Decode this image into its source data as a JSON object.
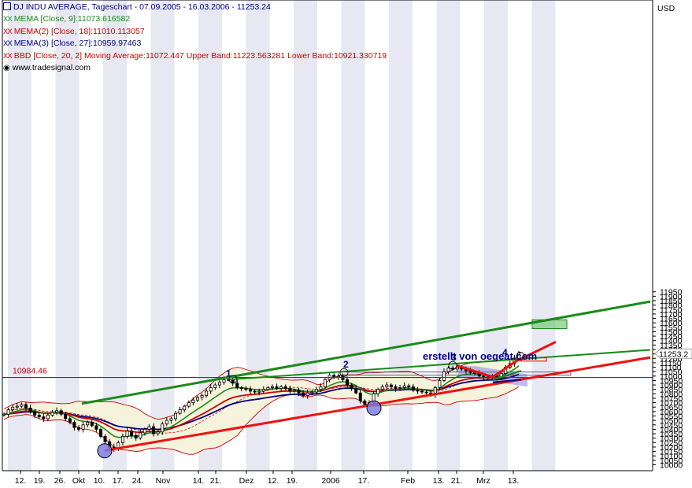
{
  "legend": {
    "title": "DJ INDU AVERAGE, Tageschart - 07.09.2005 - 16.03.2006 - 11253.24",
    "mema9": "MEMA [Close, 9]:11073.616582",
    "mema18": "MEMA(2) [Close, 18]:11010.113057",
    "mema27": "MEMA(3) [Close, 27]:10959.97463",
    "bbd": "BBD [Close, 20, 2] Moving Average:11072.447 Upper Band:11223.563281 Lower Band:10921.330719",
    "source": "www.tradesignal.com",
    "xx": "XX"
  },
  "colors": {
    "mema9": "#1f8a1f",
    "mema18": "#cc0000",
    "mema27": "#000080",
    "bbd": "#cc0000",
    "title": "#000080",
    "green_trend": "#1a8a1a",
    "red_trend": "#ee1111",
    "band_fill": "#f6f3dc",
    "stripe": "#e8e8f3"
  },
  "chart_data": {
    "type": "candlestick",
    "currency_label": "USD",
    "ylim": [
      9990,
      12000
    ],
    "y_ticks": [
      10000,
      10050,
      10100,
      10150,
      10200,
      10250,
      10300,
      10350,
      10400,
      10450,
      10500,
      10550,
      10600,
      10650,
      10700,
      10750,
      10800,
      10850,
      10900,
      10950,
      11000,
      11050,
      11100,
      11150,
      11200,
      11250,
      11300,
      11350,
      11400,
      11450,
      11500,
      11550,
      11600,
      11650,
      11700,
      11750,
      11800,
      11850,
      11900,
      11950
    ],
    "x_labels": [
      "12.",
      "19.",
      "26.",
      "Okt",
      "10.",
      "17.",
      "24.",
      "Nov",
      "14.",
      "21.",
      "Dez",
      "12.",
      "19.",
      "2006",
      "17.",
      "Feb",
      "13.",
      "21.",
      "Mrz",
      "13."
    ],
    "last_price_label": "11253.2",
    "horizontal_level_label": "10984.46",
    "horizontal_level": 10984.46,
    "annotation": "erstellt von oegeat.com",
    "wave_labels": [
      "1",
      "2",
      "3",
      "4"
    ],
    "closes": [
      10570,
      10620,
      10650,
      10660,
      10680,
      10640,
      10600,
      10560,
      10540,
      10520,
      10560,
      10590,
      10610,
      10570,
      10520,
      10480,
      10420,
      10400,
      10450,
      10480,
      10440,
      10400,
      10320,
      10260,
      10200,
      10180,
      10250,
      10320,
      10380,
      10330,
      10300,
      10360,
      10400,
      10430,
      10350,
      10370,
      10460,
      10500,
      10520,
      10580,
      10620,
      10660,
      10700,
      10730,
      10760,
      10780,
      10830,
      10870,
      10900,
      10930,
      10960,
      10960,
      10920,
      10870,
      10860,
      10850,
      10830,
      10820,
      10830,
      10850,
      10870,
      10880,
      10860,
      10880,
      10860,
      10830,
      10840,
      10810,
      10780,
      10810,
      10820,
      10850,
      10880,
      10960,
      11010,
      10990,
      11000,
      10960,
      10900,
      10860,
      10810,
      10720,
      10680,
      10700,
      10800,
      10850,
      10880,
      10900,
      10880,
      10860,
      10870,
      10890,
      10880,
      10840,
      10830,
      10820,
      10810,
      10790,
      10870,
      10950,
      11050,
      11090,
      11080,
      11100,
      11080,
      11060,
      11040,
      11040,
      11000,
      10990,
      10980,
      11000,
      10980,
      11030,
      11100,
      11140,
      11200,
      11260
    ]
  }
}
